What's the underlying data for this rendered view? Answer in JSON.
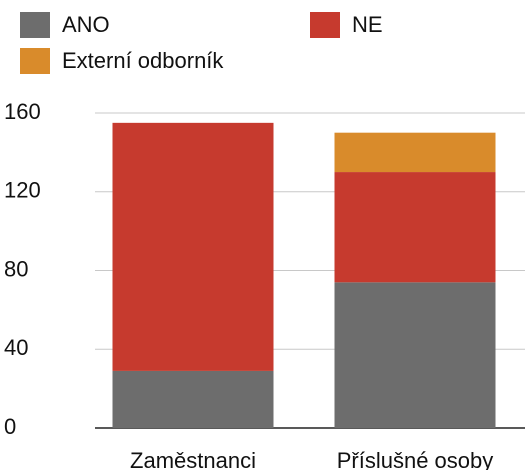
{
  "chart_data": {
    "type": "stacked_bar",
    "categories": [
      "Zaměstnanci",
      "Příslušné osoby"
    ],
    "series": [
      {
        "name": "ANO",
        "color": "#6d6d6d",
        "values": [
          29,
          74
        ]
      },
      {
        "name": "NE",
        "color": "#c63a2e",
        "values": [
          126,
          56
        ]
      },
      {
        "name": "Externí odborník",
        "color": "#d98b2b",
        "values": [
          0,
          20
        ]
      }
    ],
    "ylim": [
      0,
      160
    ],
    "yticks": [
      0,
      40,
      80,
      120,
      160
    ],
    "grid": true,
    "legend": "top"
  }
}
